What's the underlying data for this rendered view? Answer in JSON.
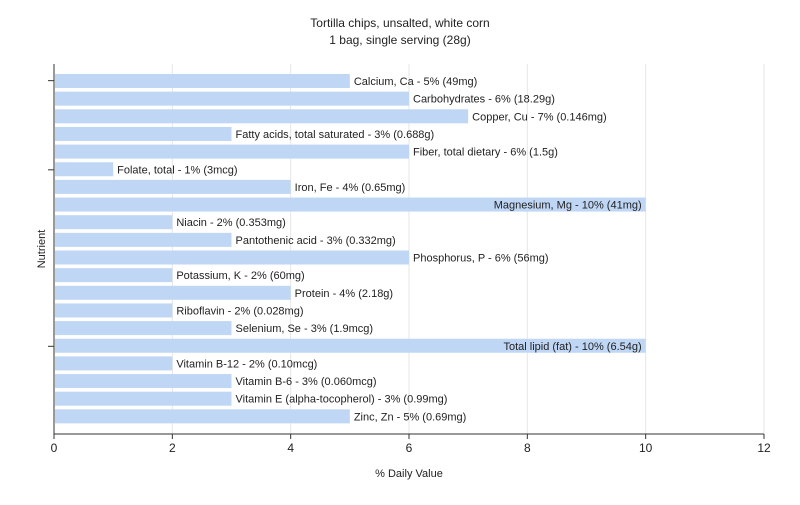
{
  "chart_data": {
    "type": "bar",
    "orientation": "horizontal",
    "title": "Tortilla chips, unsalted, white corn",
    "subtitle": "1 bag, single serving (28g)",
    "xlabel": "% Daily Value",
    "ylabel": "Nutrient",
    "xlim": [
      0,
      12
    ],
    "xticks": [
      0,
      2,
      4,
      6,
      8,
      10,
      12
    ],
    "grid": true,
    "legend": "none",
    "bar_color": "#bfd6f5",
    "categories": [
      "Calcium, Ca",
      "Carbohydrates",
      "Copper, Cu",
      "Fatty acids, total saturated",
      "Fiber, total dietary",
      "Folate, total",
      "Iron, Fe",
      "Magnesium, Mg",
      "Niacin",
      "Pantothenic acid",
      "Phosphorus, P",
      "Potassium, K",
      "Protein",
      "Riboflavin",
      "Selenium, Se",
      "Total lipid (fat)",
      "Vitamin B-12",
      "Vitamin B-6",
      "Vitamin E (alpha-tocopherol)",
      "Zinc, Zn"
    ],
    "values": [
      5,
      6,
      7,
      3,
      6,
      1,
      4,
      10,
      2,
      3,
      6,
      2,
      4,
      2,
      3,
      10,
      2,
      3,
      3,
      5
    ],
    "labels": [
      "Calcium, Ca - 5% (49mg)",
      "Carbohydrates - 6% (18.29g)",
      "Copper, Cu - 7% (0.146mg)",
      "Fatty acids, total saturated - 3% (0.688g)",
      "Fiber, total dietary - 6% (1.5g)",
      "Folate, total - 1% (3mcg)",
      "Iron, Fe - 4% (0.65mg)",
      "Magnesium, Mg - 10% (41mg)",
      "Niacin - 2% (0.353mg)",
      "Pantothenic acid - 3% (0.332mg)",
      "Phosphorus, P - 6% (56mg)",
      "Potassium, K - 2% (60mg)",
      "Protein - 4% (2.18g)",
      "Riboflavin - 2% (0.028mg)",
      "Selenium, Se - 3% (1.9mcg)",
      "Total lipid (fat) - 10% (6.54g)",
      "Vitamin B-12 - 2% (0.10mcg)",
      "Vitamin B-6 - 3% (0.060mcg)",
      "Vitamin E (alpha-tocopherol) - 3% (0.99mg)",
      "Zinc, Zn - 5% (0.69mg)"
    ]
  }
}
